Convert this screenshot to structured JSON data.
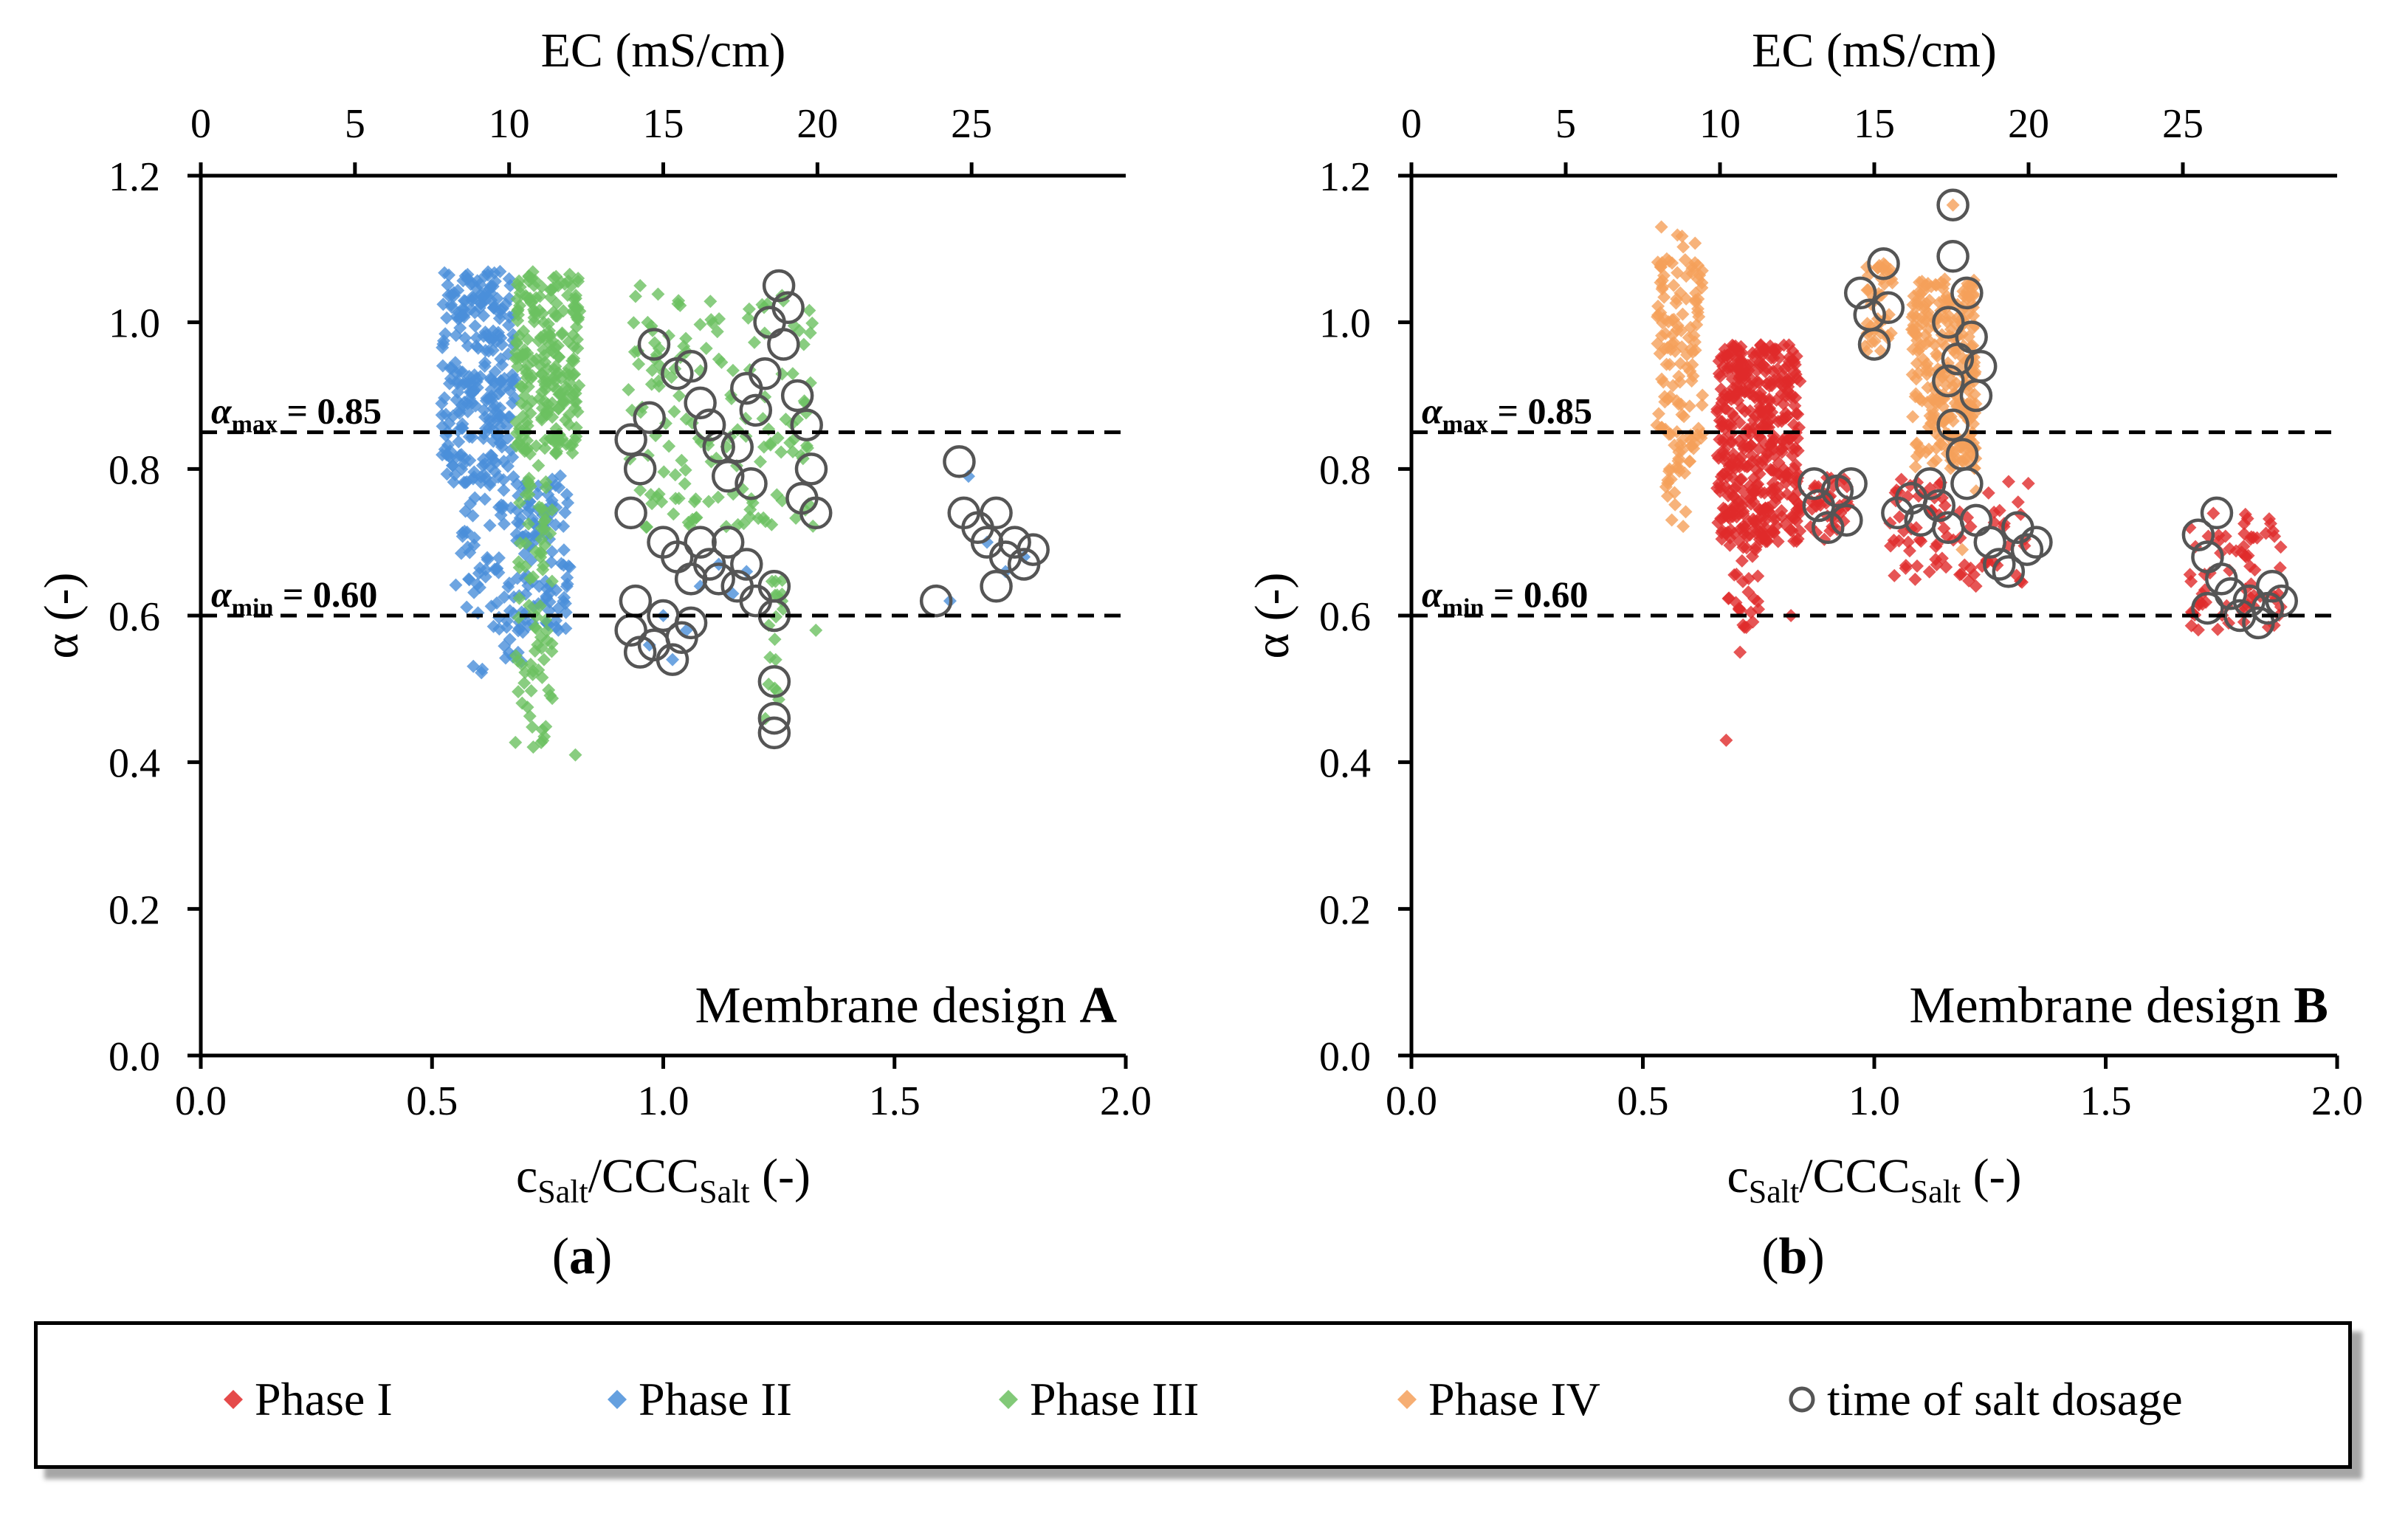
{
  "chart_data": [
    {
      "type": "scatter",
      "panel_label_prefix": "(",
      "panel_label_letter": "a",
      "panel_label_suffix": ")",
      "annotation_prefix": "Membrane design ",
      "annotation_letter": "A",
      "xlabel_parts": [
        "c",
        "Salt",
        "/CCC",
        "Salt",
        " (-)"
      ],
      "ylabel": "α (-)",
      "top_xlabel": "EC (mS/cm)",
      "xlim": [
        0.0,
        2.0
      ],
      "ylim": [
        0.0,
        1.2
      ],
      "top_xlim": [
        0,
        30
      ],
      "x_ticks": [
        "0.0",
        "0.5",
        "1.0",
        "1.5",
        "2.0"
      ],
      "y_ticks": [
        "0.0",
        "0.2",
        "0.4",
        "0.6",
        "0.8",
        "1.0",
        "1.2"
      ],
      "top_ticks": [
        "0",
        "5",
        "10",
        "15",
        "20",
        "25"
      ],
      "hlines": [
        {
          "y": 0.85,
          "sym": "α",
          "sub": "max",
          "text": " = 0.85"
        },
        {
          "y": 0.6,
          "sym": "α",
          "sub": "min",
          "text": " = 0.60"
        }
      ],
      "series": [
        {
          "name": "Phase II",
          "color": "#4a8fd9",
          "marker": "diamond",
          "clusters": [
            {
              "x": [
                0.52,
                0.68
              ],
              "y": [
                0.78,
                1.07
              ],
              "n": 260
            },
            {
              "x": [
                0.55,
                0.7
              ],
              "y": [
                0.58,
                0.78
              ],
              "n": 70
            },
            {
              "x": [
                0.58,
                0.7
              ],
              "y": [
                0.52,
                0.6
              ],
              "n": 14
            },
            {
              "x": [
                0.7,
                0.8
              ],
              "y": [
                0.58,
                0.8
              ],
              "n": 90
            }
          ],
          "points": [
            {
              "x": 0.97,
              "y": 0.56
            },
            {
              "x": 1.0,
              "y": 0.6
            },
            {
              "x": 1.02,
              "y": 0.54
            },
            {
              "x": 1.05,
              "y": 0.58
            },
            {
              "x": 1.08,
              "y": 0.64
            },
            {
              "x": 1.12,
              "y": 0.67
            },
            {
              "x": 1.15,
              "y": 0.63
            },
            {
              "x": 1.18,
              "y": 0.66
            },
            {
              "x": 1.62,
              "y": 0.62
            },
            {
              "x": 1.66,
              "y": 0.79
            },
            {
              "x": 1.7,
              "y": 0.7
            },
            {
              "x": 1.74,
              "y": 0.66
            },
            {
              "x": 1.78,
              "y": 0.68
            }
          ]
        },
        {
          "name": "Phase III",
          "color": "#6cc060",
          "marker": "diamond",
          "clusters": [
            {
              "x": [
                0.68,
                0.82
              ],
              "y": [
                0.82,
                1.07
              ],
              "n": 230
            },
            {
              "x": [
                0.68,
                0.76
              ],
              "y": [
                0.42,
                0.82
              ],
              "n": 80
            },
            {
              "x": [
                0.92,
                1.33
              ],
              "y": [
                0.72,
                1.04
              ],
              "n": 150
            },
            {
              "x": [
                1.22,
                1.26
              ],
              "y": [
                0.44,
                0.66
              ],
              "n": 18
            }
          ],
          "points": [
            {
              "x": 0.95,
              "y": 1.05
            },
            {
              "x": 0.99,
              "y": 0.92
            },
            {
              "x": 1.33,
              "y": 0.58
            },
            {
              "x": 0.81,
              "y": 0.41
            },
            {
              "x": 1.28,
              "y": 0.93
            }
          ]
        }
      ],
      "salt_dosage": [
        {
          "x": 0.93,
          "y": 0.84
        },
        {
          "x": 0.95,
          "y": 0.8
        },
        {
          "x": 0.97,
          "y": 0.87
        },
        {
          "x": 0.98,
          "y": 0.97
        },
        {
          "x": 0.93,
          "y": 0.74
        },
        {
          "x": 0.94,
          "y": 0.62
        },
        {
          "x": 0.93,
          "y": 0.58
        },
        {
          "x": 0.95,
          "y": 0.55
        },
        {
          "x": 0.98,
          "y": 0.56
        },
        {
          "x": 1.0,
          "y": 0.6
        },
        {
          "x": 1.02,
          "y": 0.54
        },
        {
          "x": 1.04,
          "y": 0.57
        },
        {
          "x": 1.06,
          "y": 0.59
        },
        {
          "x": 1.0,
          "y": 0.7
        },
        {
          "x": 1.03,
          "y": 0.68
        },
        {
          "x": 1.06,
          "y": 0.65
        },
        {
          "x": 1.08,
          "y": 0.7
        },
        {
          "x": 1.1,
          "y": 0.67
        },
        {
          "x": 1.12,
          "y": 0.65
        },
        {
          "x": 1.14,
          "y": 0.7
        },
        {
          "x": 1.16,
          "y": 0.64
        },
        {
          "x": 1.18,
          "y": 0.67
        },
        {
          "x": 1.2,
          "y": 0.62
        },
        {
          "x": 1.03,
          "y": 0.93
        },
        {
          "x": 1.06,
          "y": 0.94
        },
        {
          "x": 1.08,
          "y": 0.89
        },
        {
          "x": 1.1,
          "y": 0.86
        },
        {
          "x": 1.12,
          "y": 0.83
        },
        {
          "x": 1.14,
          "y": 0.79
        },
        {
          "x": 1.16,
          "y": 0.83
        },
        {
          "x": 1.18,
          "y": 0.91
        },
        {
          "x": 1.2,
          "y": 0.88
        },
        {
          "x": 1.19,
          "y": 0.78
        },
        {
          "x": 1.22,
          "y": 0.93
        },
        {
          "x": 1.23,
          "y": 1.0
        },
        {
          "x": 1.25,
          "y": 1.05
        },
        {
          "x": 1.26,
          "y": 0.97
        },
        {
          "x": 1.27,
          "y": 1.02
        },
        {
          "x": 1.29,
          "y": 0.9
        },
        {
          "x": 1.31,
          "y": 0.86
        },
        {
          "x": 1.32,
          "y": 0.8
        },
        {
          "x": 1.33,
          "y": 0.74
        },
        {
          "x": 1.3,
          "y": 0.76
        },
        {
          "x": 1.24,
          "y": 0.64
        },
        {
          "x": 1.24,
          "y": 0.6
        },
        {
          "x": 1.24,
          "y": 0.51
        },
        {
          "x": 1.24,
          "y": 0.46
        },
        {
          "x": 1.24,
          "y": 0.44
        },
        {
          "x": 1.64,
          "y": 0.81
        },
        {
          "x": 1.65,
          "y": 0.74
        },
        {
          "x": 1.68,
          "y": 0.72
        },
        {
          "x": 1.7,
          "y": 0.7
        },
        {
          "x": 1.72,
          "y": 0.74
        },
        {
          "x": 1.74,
          "y": 0.68
        },
        {
          "x": 1.76,
          "y": 0.7
        },
        {
          "x": 1.78,
          "y": 0.67
        },
        {
          "x": 1.72,
          "y": 0.64
        },
        {
          "x": 1.8,
          "y": 0.69
        },
        {
          "x": 1.59,
          "y": 0.62
        }
      ]
    },
    {
      "type": "scatter",
      "panel_label_prefix": "(",
      "panel_label_letter": "b",
      "panel_label_suffix": ")",
      "annotation_prefix": "Membrane design ",
      "annotation_letter": "B",
      "xlabel_parts": [
        "c",
        "Salt",
        "/CCC",
        "Salt",
        " (-)"
      ],
      "ylabel": "α (-)",
      "top_xlabel": "EC (mS/cm)",
      "xlim": [
        0.0,
        2.0
      ],
      "ylim": [
        0.0,
        1.2
      ],
      "top_xlim": [
        0,
        30
      ],
      "x_ticks": [
        "0.0",
        "0.5",
        "1.0",
        "1.5",
        "2.0"
      ],
      "y_ticks": [
        "0.0",
        "0.2",
        "0.4",
        "0.6",
        "0.8",
        "1.0",
        "1.2"
      ],
      "top_ticks": [
        "0",
        "5",
        "10",
        "15",
        "20",
        "25"
      ],
      "hlines": [
        {
          "y": 0.85,
          "sym": "α",
          "sub": "max",
          "text": " = 0.85"
        },
        {
          "y": 0.6,
          "sym": "α",
          "sub": "min",
          "text": " = 0.60"
        }
      ],
      "series": [
        {
          "name": "Phase IV",
          "color": "#f5a05a",
          "marker": "diamond",
          "clusters": [
            {
              "x": [
                0.53,
                0.63
              ],
              "y": [
                0.82,
                1.12
              ],
              "n": 120
            },
            {
              "x": [
                0.55,
                0.62
              ],
              "y": [
                0.72,
                0.84
              ],
              "n": 25
            },
            {
              "x": [
                0.98,
                1.04
              ],
              "y": [
                0.96,
                1.08
              ],
              "n": 40
            },
            {
              "x": [
                1.08,
                1.22
              ],
              "y": [
                0.8,
                1.06
              ],
              "n": 260
            }
          ],
          "points": [
            {
              "x": 0.54,
              "y": 1.13
            },
            {
              "x": 1.17,
              "y": 1.16
            },
            {
              "x": 1.22,
              "y": 0.77
            },
            {
              "x": 1.19,
              "y": 0.69
            }
          ]
        },
        {
          "name": "Phase I",
          "color": "#e02a2a",
          "marker": "diamond",
          "clusters": [
            {
              "x": [
                0.66,
                0.84
              ],
              "y": [
                0.7,
                0.97
              ],
              "n": 420
            },
            {
              "x": [
                0.68,
                0.75
              ],
              "y": [
                0.58,
                0.72
              ],
              "n": 30
            },
            {
              "x": [
                0.86,
                0.95
              ],
              "y": [
                0.69,
                0.79
              ],
              "n": 35
            },
            {
              "x": [
                1.03,
                1.34
              ],
              "y": [
                0.64,
                0.79
              ],
              "n": 80
            },
            {
              "x": [
                1.68,
                1.88
              ],
              "y": [
                0.58,
                0.74
              ],
              "n": 70
            }
          ],
          "points": [
            {
              "x": 0.68,
              "y": 0.43
            },
            {
              "x": 0.71,
              "y": 0.55
            },
            {
              "x": 0.82,
              "y": 0.6
            }
          ]
        }
      ],
      "salt_dosage": [
        {
          "x": 0.87,
          "y": 0.78
        },
        {
          "x": 0.88,
          "y": 0.75
        },
        {
          "x": 0.9,
          "y": 0.72
        },
        {
          "x": 0.92,
          "y": 0.77
        },
        {
          "x": 0.94,
          "y": 0.73
        },
        {
          "x": 0.95,
          "y": 0.78
        },
        {
          "x": 0.97,
          "y": 1.04
        },
        {
          "x": 0.99,
          "y": 1.01
        },
        {
          "x": 1.0,
          "y": 0.97
        },
        {
          "x": 1.02,
          "y": 1.08
        },
        {
          "x": 1.03,
          "y": 1.02
        },
        {
          "x": 1.05,
          "y": 0.74
        },
        {
          "x": 1.08,
          "y": 0.76
        },
        {
          "x": 1.1,
          "y": 0.73
        },
        {
          "x": 1.12,
          "y": 0.78
        },
        {
          "x": 1.14,
          "y": 0.75
        },
        {
          "x": 1.16,
          "y": 0.72
        },
        {
          "x": 1.17,
          "y": 1.16
        },
        {
          "x": 1.17,
          "y": 1.09
        },
        {
          "x": 1.16,
          "y": 1.0
        },
        {
          "x": 1.16,
          "y": 0.92
        },
        {
          "x": 1.17,
          "y": 0.86
        },
        {
          "x": 1.18,
          "y": 0.95
        },
        {
          "x": 1.19,
          "y": 0.82
        },
        {
          "x": 1.2,
          "y": 1.04
        },
        {
          "x": 1.21,
          "y": 0.98
        },
        {
          "x": 1.22,
          "y": 0.9
        },
        {
          "x": 1.23,
          "y": 0.94
        },
        {
          "x": 1.2,
          "y": 0.78
        },
        {
          "x": 1.22,
          "y": 0.73
        },
        {
          "x": 1.25,
          "y": 0.7
        },
        {
          "x": 1.27,
          "y": 0.67
        },
        {
          "x": 1.29,
          "y": 0.66
        },
        {
          "x": 1.31,
          "y": 0.72
        },
        {
          "x": 1.33,
          "y": 0.69
        },
        {
          "x": 1.35,
          "y": 0.7
        },
        {
          "x": 1.7,
          "y": 0.71
        },
        {
          "x": 1.72,
          "y": 0.68
        },
        {
          "x": 1.74,
          "y": 0.74
        },
        {
          "x": 1.75,
          "y": 0.65
        },
        {
          "x": 1.77,
          "y": 0.63
        },
        {
          "x": 1.79,
          "y": 0.6
        },
        {
          "x": 1.81,
          "y": 0.62
        },
        {
          "x": 1.83,
          "y": 0.59
        },
        {
          "x": 1.85,
          "y": 0.61
        },
        {
          "x": 1.86,
          "y": 0.64
        },
        {
          "x": 1.88,
          "y": 0.62
        },
        {
          "x": 1.72,
          "y": 0.61
        }
      ]
    }
  ],
  "legend": [
    {
      "label": "Phase I",
      "color": "#e02a2a",
      "marker": "diamond"
    },
    {
      "label": "Phase II",
      "color": "#4a8fd9",
      "marker": "diamond"
    },
    {
      "label": "Phase III",
      "color": "#6cc060",
      "marker": "diamond"
    },
    {
      "label": "Phase IV",
      "color": "#f5a05a",
      "marker": "diamond"
    },
    {
      "label": "time of salt dosage",
      "color": "#555555",
      "marker": "circle"
    }
  ]
}
